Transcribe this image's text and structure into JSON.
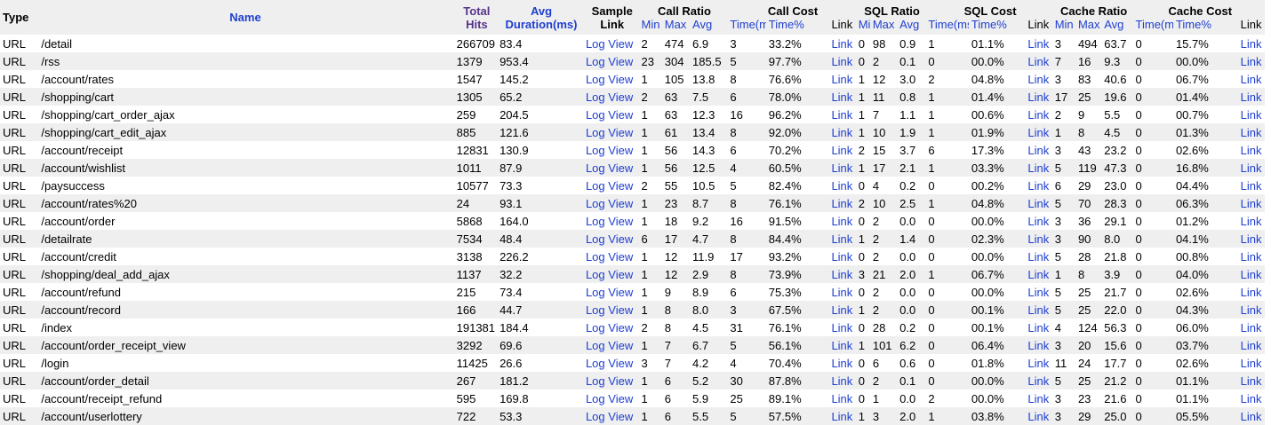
{
  "headers": {
    "type": "Type",
    "name": "Name",
    "total_hits": [
      "Total",
      "Hits"
    ],
    "avg_duration": [
      "Avg",
      "Duration(ms)"
    ],
    "sample_link": [
      "Sample",
      "Link"
    ],
    "groups": [
      "Call Ratio",
      "Call Cost",
      "SQL Ratio",
      "SQL Cost",
      "Cache Ratio",
      "Cache Cost"
    ],
    "link": "Link",
    "ratio_sub": [
      "Min",
      "Max",
      "Avg"
    ],
    "cost_sub": [
      "Time(ms)",
      "Time%"
    ]
  },
  "link_labels": {
    "log": "Log",
    "view": "View",
    "link": "Link"
  },
  "rows": [
    {
      "type": "URL",
      "name": "/detail",
      "hits": "266709",
      "avg": "83.4",
      "cr": [
        "2",
        "474",
        "6.9"
      ],
      "cc": [
        "3",
        "33.2%"
      ],
      "sr": [
        "0",
        "98",
        "0.9"
      ],
      "sc": [
        "1",
        "01.1%"
      ],
      "kr": [
        "3",
        "494",
        "63.7"
      ],
      "kc": [
        "0",
        "15.7%"
      ]
    },
    {
      "type": "URL",
      "name": "/rss",
      "hits": "1379",
      "avg": "953.4",
      "cr": [
        "23",
        "304",
        "185.5"
      ],
      "cc": [
        "5",
        "97.7%"
      ],
      "sr": [
        "0",
        "2",
        "0.1"
      ],
      "sc": [
        "0",
        "00.0%"
      ],
      "kr": [
        "7",
        "16",
        "9.3"
      ],
      "kc": [
        "0",
        "00.0%"
      ]
    },
    {
      "type": "URL",
      "name": "/account/rates",
      "hits": "1547",
      "avg": "145.2",
      "cr": [
        "1",
        "105",
        "13.8"
      ],
      "cc": [
        "8",
        "76.6%"
      ],
      "sr": [
        "1",
        "12",
        "3.0"
      ],
      "sc": [
        "2",
        "04.8%"
      ],
      "kr": [
        "3",
        "83",
        "40.6"
      ],
      "kc": [
        "0",
        "06.7%"
      ]
    },
    {
      "type": "URL",
      "name": "/shopping/cart",
      "hits": "1305",
      "avg": "65.2",
      "cr": [
        "2",
        "63",
        "7.5"
      ],
      "cc": [
        "6",
        "78.0%"
      ],
      "sr": [
        "1",
        "11",
        "0.8"
      ],
      "sc": [
        "1",
        "01.4%"
      ],
      "kr": [
        "17",
        "25",
        "19.6"
      ],
      "kc": [
        "0",
        "01.4%"
      ]
    },
    {
      "type": "URL",
      "name": "/shopping/cart_order_ajax",
      "hits": "259",
      "avg": "204.5",
      "cr": [
        "1",
        "63",
        "12.3"
      ],
      "cc": [
        "16",
        "96.2%"
      ],
      "sr": [
        "1",
        "7",
        "1.1"
      ],
      "sc": [
        "1",
        "00.6%"
      ],
      "kr": [
        "2",
        "9",
        "5.5"
      ],
      "kc": [
        "0",
        "00.7%"
      ]
    },
    {
      "type": "URL",
      "name": "/shopping/cart_edit_ajax",
      "hits": "885",
      "avg": "121.6",
      "cr": [
        "1",
        "61",
        "13.4"
      ],
      "cc": [
        "8",
        "92.0%"
      ],
      "sr": [
        "1",
        "10",
        "1.9"
      ],
      "sc": [
        "1",
        "01.9%"
      ],
      "kr": [
        "1",
        "8",
        "4.5"
      ],
      "kc": [
        "0",
        "01.3%"
      ]
    },
    {
      "type": "URL",
      "name": "/account/receipt",
      "hits": "12831",
      "avg": "130.9",
      "cr": [
        "1",
        "56",
        "14.3"
      ],
      "cc": [
        "6",
        "70.2%"
      ],
      "sr": [
        "2",
        "15",
        "3.7"
      ],
      "sc": [
        "6",
        "17.3%"
      ],
      "kr": [
        "3",
        "43",
        "23.2"
      ],
      "kc": [
        "0",
        "02.6%"
      ]
    },
    {
      "type": "URL",
      "name": "/account/wishlist",
      "hits": "1011",
      "avg": "87.9",
      "cr": [
        "1",
        "56",
        "12.5"
      ],
      "cc": [
        "4",
        "60.5%"
      ],
      "sr": [
        "1",
        "17",
        "2.1"
      ],
      "sc": [
        "1",
        "03.3%"
      ],
      "kr": [
        "5",
        "119",
        "47.3"
      ],
      "kc": [
        "0",
        "16.8%"
      ]
    },
    {
      "type": "URL",
      "name": "/paysuccess",
      "hits": "10577",
      "avg": "73.3",
      "cr": [
        "2",
        "55",
        "10.5"
      ],
      "cc": [
        "5",
        "82.4%"
      ],
      "sr": [
        "0",
        "4",
        "0.2"
      ],
      "sc": [
        "0",
        "00.2%"
      ],
      "kr": [
        "6",
        "29",
        "23.0"
      ],
      "kc": [
        "0",
        "04.4%"
      ]
    },
    {
      "type": "URL",
      "name": "/account/rates%20",
      "hits": "24",
      "avg": "93.1",
      "cr": [
        "1",
        "23",
        "8.7"
      ],
      "cc": [
        "8",
        "76.1%"
      ],
      "sr": [
        "2",
        "10",
        "2.5"
      ],
      "sc": [
        "1",
        "04.8%"
      ],
      "kr": [
        "5",
        "70",
        "28.3"
      ],
      "kc": [
        "0",
        "06.3%"
      ]
    },
    {
      "type": "URL",
      "name": "/account/order",
      "hits": "5868",
      "avg": "164.0",
      "cr": [
        "1",
        "18",
        "9.2"
      ],
      "cc": [
        "16",
        "91.5%"
      ],
      "sr": [
        "0",
        "2",
        "0.0"
      ],
      "sc": [
        "0",
        "00.0%"
      ],
      "kr": [
        "3",
        "36",
        "29.1"
      ],
      "kc": [
        "0",
        "01.2%"
      ]
    },
    {
      "type": "URL",
      "name": "/detailrate",
      "hits": "7534",
      "avg": "48.4",
      "cr": [
        "6",
        "17",
        "4.7"
      ],
      "cc": [
        "8",
        "84.4%"
      ],
      "sr": [
        "1",
        "2",
        "1.4"
      ],
      "sc": [
        "0",
        "02.3%"
      ],
      "kr": [
        "3",
        "90",
        "8.0"
      ],
      "kc": [
        "0",
        "04.1%"
      ]
    },
    {
      "type": "URL",
      "name": "/account/credit",
      "hits": "3138",
      "avg": "226.2",
      "cr": [
        "1",
        "12",
        "11.9"
      ],
      "cc": [
        "17",
        "93.2%"
      ],
      "sr": [
        "0",
        "2",
        "0.0"
      ],
      "sc": [
        "0",
        "00.0%"
      ],
      "kr": [
        "5",
        "28",
        "21.8"
      ],
      "kc": [
        "0",
        "00.8%"
      ]
    },
    {
      "type": "URL",
      "name": "/shopping/deal_add_ajax",
      "hits": "1137",
      "avg": "32.2",
      "cr": [
        "1",
        "12",
        "2.9"
      ],
      "cc": [
        "8",
        "73.9%"
      ],
      "sr": [
        "3",
        "21",
        "2.0"
      ],
      "sc": [
        "1",
        "06.7%"
      ],
      "kr": [
        "1",
        "8",
        "3.9"
      ],
      "kc": [
        "0",
        "04.0%"
      ]
    },
    {
      "type": "URL",
      "name": "/account/refund",
      "hits": "215",
      "avg": "73.4",
      "cr": [
        "1",
        "9",
        "8.9"
      ],
      "cc": [
        "6",
        "75.3%"
      ],
      "sr": [
        "0",
        "2",
        "0.0"
      ],
      "sc": [
        "0",
        "00.0%"
      ],
      "kr": [
        "5",
        "25",
        "21.7"
      ],
      "kc": [
        "0",
        "02.6%"
      ]
    },
    {
      "type": "URL",
      "name": "/account/record",
      "hits": "166",
      "avg": "44.7",
      "cr": [
        "1",
        "8",
        "8.0"
      ],
      "cc": [
        "3",
        "67.5%"
      ],
      "sr": [
        "1",
        "2",
        "0.0"
      ],
      "sc": [
        "0",
        "00.1%"
      ],
      "kr": [
        "5",
        "25",
        "22.0"
      ],
      "kc": [
        "0",
        "04.3%"
      ]
    },
    {
      "type": "URL",
      "name": "/index",
      "hits": "191381",
      "avg": "184.4",
      "cr": [
        "2",
        "8",
        "4.5"
      ],
      "cc": [
        "31",
        "76.1%"
      ],
      "sr": [
        "0",
        "28",
        "0.2"
      ],
      "sc": [
        "0",
        "00.1%"
      ],
      "kr": [
        "4",
        "124",
        "56.3"
      ],
      "kc": [
        "0",
        "06.0%"
      ]
    },
    {
      "type": "URL",
      "name": "/account/order_receipt_view",
      "hits": "3292",
      "avg": "69.6",
      "cr": [
        "1",
        "7",
        "6.7"
      ],
      "cc": [
        "5",
        "56.1%"
      ],
      "sr": [
        "1",
        "101",
        "6.2"
      ],
      "sc": [
        "0",
        "06.4%"
      ],
      "kr": [
        "3",
        "20",
        "15.6"
      ],
      "kc": [
        "0",
        "03.7%"
      ]
    },
    {
      "type": "URL",
      "name": "/login",
      "hits": "11425",
      "avg": "26.6",
      "cr": [
        "3",
        "7",
        "4.2"
      ],
      "cc": [
        "4",
        "70.4%"
      ],
      "sr": [
        "0",
        "6",
        "0.6"
      ],
      "sc": [
        "0",
        "01.8%"
      ],
      "kr": [
        "11",
        "24",
        "17.7"
      ],
      "kc": [
        "0",
        "02.6%"
      ]
    },
    {
      "type": "URL",
      "name": "/account/order_detail",
      "hits": "267",
      "avg": "181.2",
      "cr": [
        "1",
        "6",
        "5.2"
      ],
      "cc": [
        "30",
        "87.8%"
      ],
      "sr": [
        "0",
        "2",
        "0.1"
      ],
      "sc": [
        "0",
        "00.0%"
      ],
      "kr": [
        "5",
        "25",
        "21.2"
      ],
      "kc": [
        "0",
        "01.1%"
      ]
    },
    {
      "type": "URL",
      "name": "/account/receipt_refund",
      "hits": "595",
      "avg": "169.8",
      "cr": [
        "1",
        "6",
        "5.9"
      ],
      "cc": [
        "25",
        "89.1%"
      ],
      "sr": [
        "0",
        "1",
        "0.0"
      ],
      "sc": [
        "2",
        "00.0%"
      ],
      "kr": [
        "3",
        "23",
        "21.6"
      ],
      "kc": [
        "0",
        "01.1%"
      ]
    },
    {
      "type": "URL",
      "name": "/account/userlottery",
      "hits": "722",
      "avg": "53.3",
      "cr": [
        "1",
        "6",
        "5.5"
      ],
      "cc": [
        "5",
        "57.5%"
      ],
      "sr": [
        "1",
        "3",
        "2.0"
      ],
      "sc": [
        "1",
        "03.8%"
      ],
      "kr": [
        "3",
        "29",
        "25.0"
      ],
      "kc": [
        "0",
        "05.5%"
      ]
    }
  ]
}
